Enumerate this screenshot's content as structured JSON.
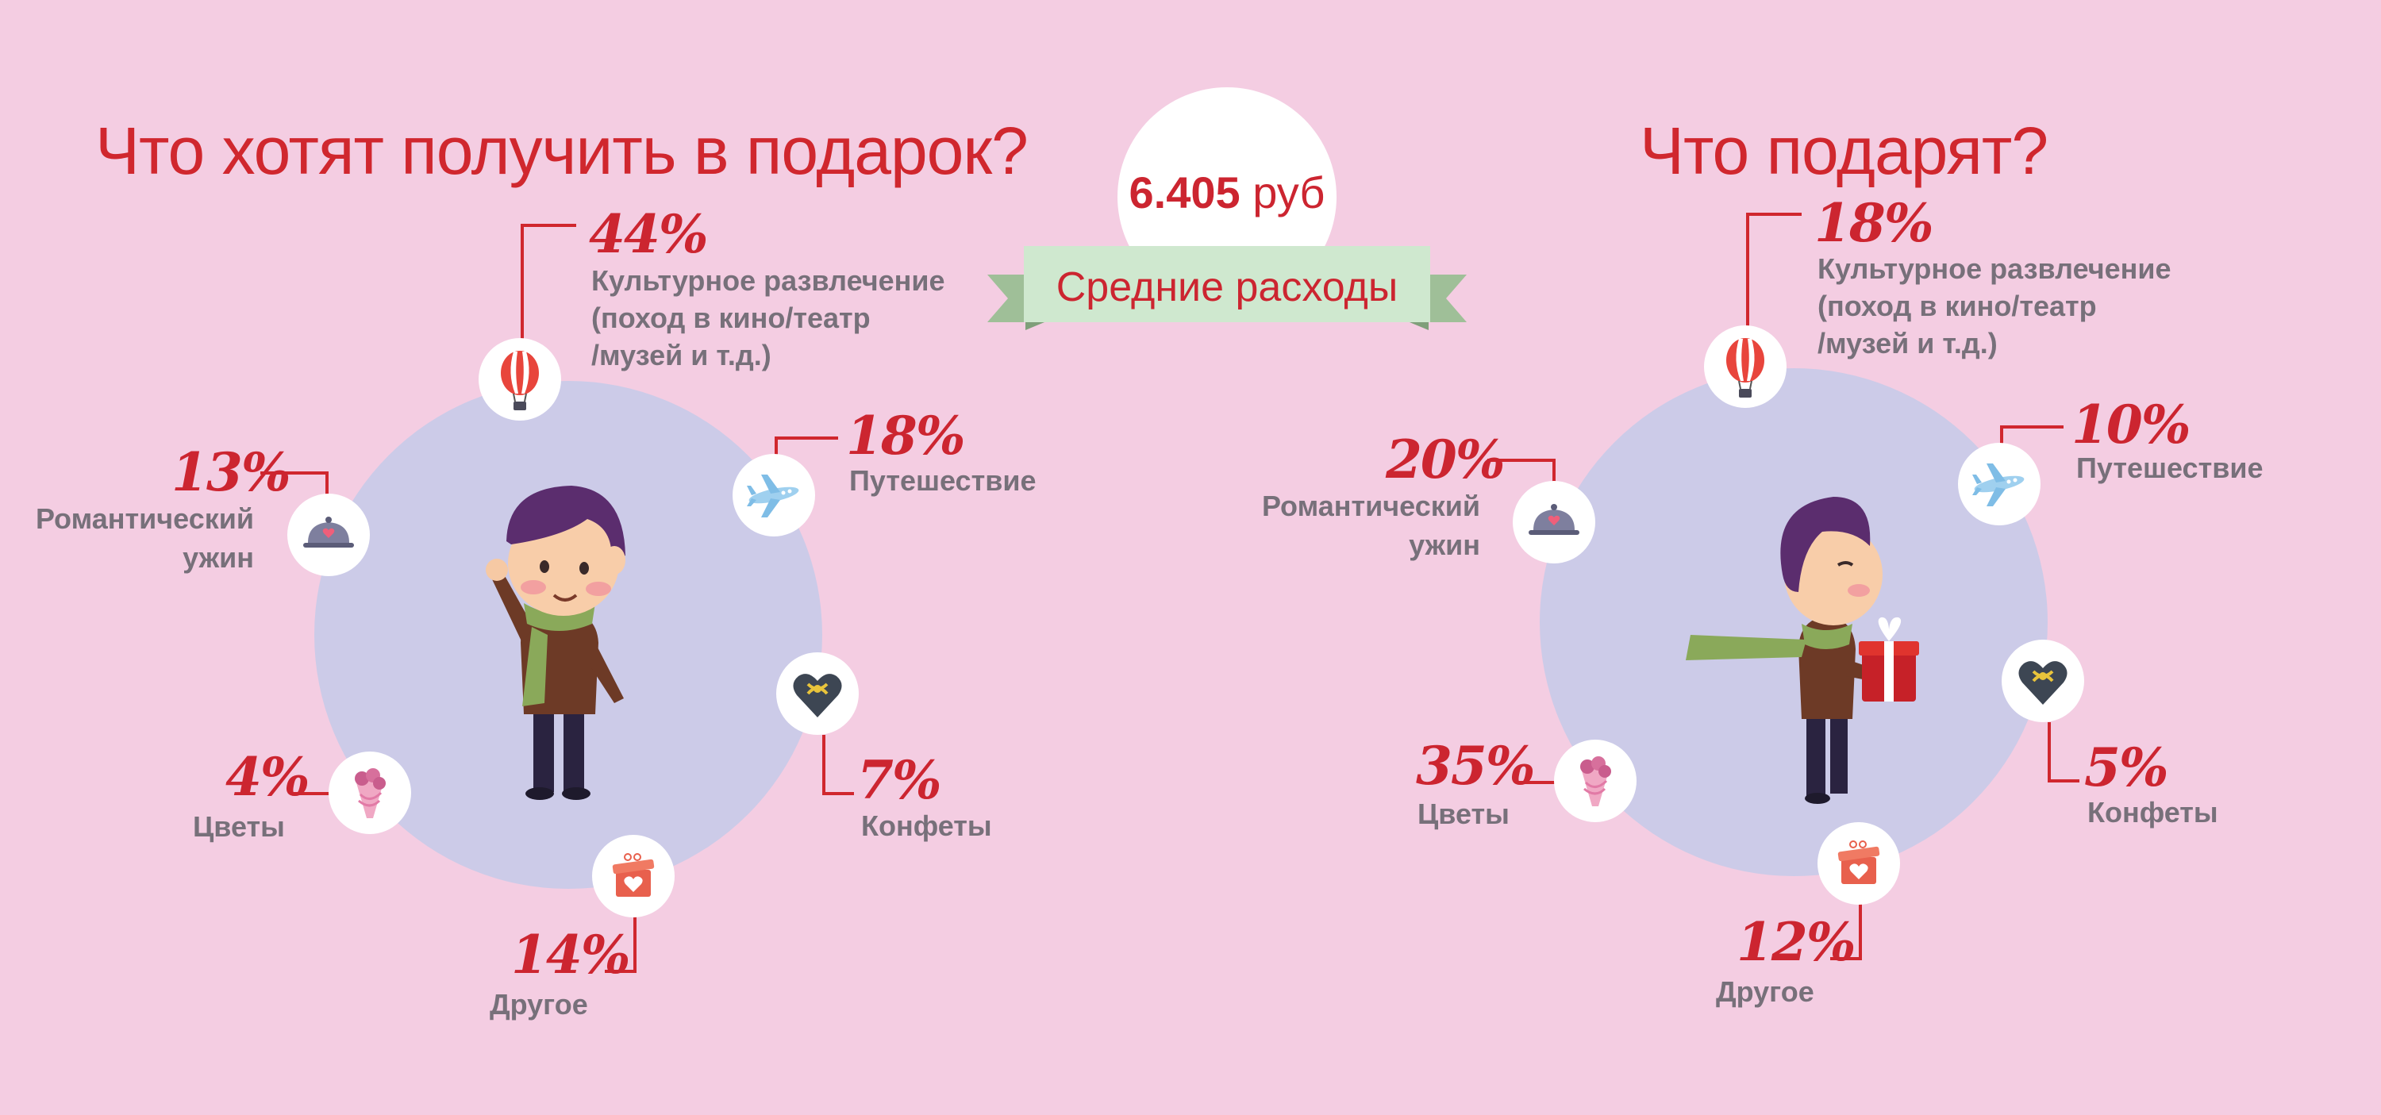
{
  "left": {
    "title": "Что хотят получить в подарок?",
    "items": [
      {
        "name": "culture",
        "value": "44%",
        "label": [
          "Культурное развлечение",
          "(поход в кино/театр",
          "/музей и т.д.)"
        ]
      },
      {
        "name": "travel",
        "value": "18%",
        "label": [
          "Путешествие"
        ]
      },
      {
        "name": "candy",
        "value": "7%",
        "label": [
          "Конфеты"
        ]
      },
      {
        "name": "other",
        "value": "14%",
        "label": [
          "Другое"
        ]
      },
      {
        "name": "flowers",
        "value": "4%",
        "label": [
          "Цветы"
        ]
      },
      {
        "name": "dinner",
        "value": "13%",
        "label": [
          "Романтический",
          "ужин"
        ]
      }
    ]
  },
  "right": {
    "title": "Что подарят?",
    "items": [
      {
        "name": "culture",
        "value": "18%",
        "label": [
          "Культурное развлечение",
          "(поход в кино/театр",
          "/музей и т.д.)"
        ]
      },
      {
        "name": "travel",
        "value": "10%",
        "label": [
          "Путешествие"
        ]
      },
      {
        "name": "candy",
        "value": "5%",
        "label": [
          "Конфеты"
        ]
      },
      {
        "name": "other",
        "value": "12%",
        "label": [
          "Другое"
        ]
      },
      {
        "name": "flowers",
        "value": "35%",
        "label": [
          "Цветы"
        ]
      },
      {
        "name": "dinner",
        "value": "20%",
        "label": [
          "Романтический",
          "ужин"
        ]
      }
    ]
  },
  "center": {
    "amount": "6.405",
    "currency": "руб",
    "ribbon": "Средние расходы"
  },
  "colors": {
    "background": "#f4cde2",
    "accent_red": "#d0272e",
    "circle": "#cccbe8",
    "label_gray": "#77707a",
    "ribbon": "#cfe8cf"
  },
  "icons": {
    "culture": "hot-air-balloon-icon",
    "travel": "airplane-icon",
    "candy": "heart-candy-box-icon",
    "other": "gift-box-icon",
    "flowers": "flower-bouquet-icon",
    "dinner": "dinner-cloche-icon"
  }
}
